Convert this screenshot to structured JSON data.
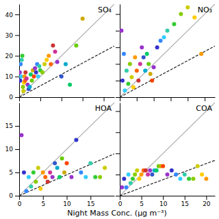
{
  "chart_data": [
    {
      "type": "scatter",
      "title": "SO₄",
      "xlim": [
        0,
        45
      ],
      "ylim": [
        0,
        45
      ],
      "xticks": [
        0,
        10,
        20,
        30,
        40
      ],
      "yticks": [
        0,
        10,
        20,
        30,
        40
      ],
      "tick_labels": "y",
      "series": [
        {
          "type": "scatter",
          "marker": "circle",
          "x": [
            0.3,
            0.5,
            0.7,
            1.0,
            1.2,
            1.5,
            1.8,
            2.0,
            2.3,
            2.5,
            2.8,
            3.0,
            3.5,
            4.0,
            4.5,
            5.0,
            5.5,
            6.0,
            6.5,
            7.0,
            7.5,
            8.0,
            8.5,
            9.0,
            9.5,
            10.0,
            11.0,
            12.0,
            13.0,
            14.0,
            15.0,
            16.0,
            17.0,
            18.0,
            20.0,
            22.0,
            24.0,
            27.0,
            30.0
          ],
          "values": [
            12.0,
            8.0,
            16.0,
            10.0,
            18.0,
            20.0,
            5.0,
            3.0,
            7.0,
            10.0,
            8.0,
            12.0,
            9.0,
            6.0,
            4.0,
            5.0,
            11.0,
            8.0,
            13.0,
            10.0,
            14.0,
            12.0,
            16.0,
            10.0,
            15.0,
            13.0,
            12.0,
            16.0,
            18.0,
            20.0,
            16.0,
            25.0,
            22.0,
            17.0,
            10.0,
            16.0,
            6.0,
            25.0,
            38.0
          ],
          "colors": [
            "#9933cc",
            "#3333cc",
            "#3388ff",
            "#33ccff",
            "#33ccaa",
            "#33cc33",
            "#88cc00",
            "#cccc00",
            "#ffcc00",
            "#ff9900",
            "#ff6600",
            "#cc3333",
            "#cc3399",
            "#9933cc",
            "#3355cc",
            "#00aacc",
            "#00cc66",
            "#66cc00",
            "#ccaa00",
            "#ff4400",
            "#9933cc",
            "#3333cc",
            "#3388ff",
            "#33ccff",
            "#33ccaa",
            "#33cc33",
            "#88cc00",
            "#cccc00",
            "#ffcc00",
            "#ff9900",
            "#ff6600",
            "#cc3333",
            "#cc3399",
            "#9933cc",
            "#3355cc",
            "#00aacc",
            "#00cc66",
            "#66cc00",
            "#ccaa00"
          ]
        },
        {
          "type": "line",
          "color": "#aaaaaa",
          "line_style": "solid",
          "x": [
            0,
            45
          ],
          "values": [
            0,
            45
          ]
        },
        {
          "type": "line",
          "color": "#222222",
          "line_style": "dashed",
          "x": [
            0,
            45
          ],
          "values": [
            0,
            24.75
          ]
        }
      ]
    },
    {
      "type": "scatter",
      "title": "NO₃",
      "xlim": [
        0,
        28
      ],
      "ylim": [
        0,
        28
      ],
      "xticks": [
        0,
        5,
        10,
        15,
        20,
        25
      ],
      "yticks": [
        0,
        5,
        10,
        15,
        20,
        25
      ],
      "tick_labels": false,
      "series": [
        {
          "type": "scatter",
          "marker": "circle",
          "x": [
            0.5,
            0.8,
            1.2,
            1.5,
            2.0,
            2.5,
            3.0,
            3.5,
            4.0,
            4.5,
            5.0,
            5.5,
            6.0,
            6.5,
            7.0,
            7.5,
            8.0,
            8.5,
            9.0,
            9.5,
            10.0,
            11.0,
            12.0,
            13.0,
            14.0,
            16.0,
            18.0,
            20.0,
            22.0,
            24.0
          ],
          "values": [
            20.0,
            5.0,
            13.0,
            2.0,
            8.0,
            4.0,
            10.0,
            6.0,
            3.0,
            12.0,
            8.0,
            5.0,
            10.0,
            15.0,
            12.0,
            8.0,
            13.0,
            10.0,
            7.0,
            5.0,
            9.0,
            15.0,
            17.0,
            18.0,
            20.0,
            22.0,
            25.0,
            27.0,
            24.0,
            13.0
          ],
          "colors": [
            "#9933cc",
            "#3333cc",
            "#3388ff",
            "#33ccff",
            "#33ccaa",
            "#33cc33",
            "#88cc00",
            "#cccc00",
            "#ffcc00",
            "#ff9900",
            "#ff6600",
            "#cc3333",
            "#cc3399",
            "#9933cc",
            "#3355cc",
            "#00aacc",
            "#00cc66",
            "#66cc00",
            "#ccaa00",
            "#ff4400",
            "#9933cc",
            "#3333cc",
            "#3388ff",
            "#33ccff",
            "#33ccaa",
            "#33cc33",
            "#88cc00",
            "#cccc00",
            "#ffcc00",
            "#ff9900"
          ]
        },
        {
          "type": "line",
          "color": "#aaaaaa",
          "line_style": "solid",
          "x": [
            0,
            28
          ],
          "values": [
            0,
            28
          ]
        },
        {
          "type": "line",
          "color": "#222222",
          "line_style": "dashed",
          "x": [
            0,
            28
          ],
          "values": [
            0,
            15.4
          ]
        }
      ]
    },
    {
      "type": "scatter",
      "title": "HOA",
      "xlabel": "Night Mass Conc. (μg m⁻³)",
      "xlim": [
        0,
        20
      ],
      "ylim": [
        0,
        20
      ],
      "xticks": [
        0,
        5,
        10,
        15
      ],
      "yticks": [
        0,
        5,
        10,
        15
      ],
      "series": [
        {
          "type": "scatter",
          "marker": "circle",
          "x": [
            0.5,
            1.0,
            1.5,
            2.0,
            2.5,
            3.0,
            3.5,
            4.0,
            4.5,
            5.0,
            5.5,
            6.0,
            6.5,
            7.0,
            7.5,
            8.0,
            8.5,
            9.0,
            9.5,
            10.0,
            11.0,
            12.0,
            13.0,
            14.0,
            15.0,
            16.0,
            17.0,
            18.0
          ],
          "values": [
            13.0,
            5.0,
            1.0,
            4.0,
            2.0,
            5.0,
            3.0,
            6.0,
            1.5,
            5.0,
            4.0,
            3.0,
            5.0,
            4.0,
            7.0,
            6.0,
            4.0,
            8.0,
            5.0,
            7.0,
            4.0,
            12.0,
            5.0,
            4.0,
            7.0,
            4.0,
            4.0,
            6.0
          ],
          "colors": [
            "#9933cc",
            "#3333cc",
            "#3388ff",
            "#33ccff",
            "#33ccaa",
            "#33cc33",
            "#88cc00",
            "#cccc00",
            "#ffcc00",
            "#ff9900",
            "#ff6600",
            "#cc3333",
            "#cc3399",
            "#9933cc",
            "#3355cc",
            "#00aacc",
            "#00cc66",
            "#66cc00",
            "#ccaa00",
            "#ff4400",
            "#9933cc",
            "#3333cc",
            "#3388ff",
            "#33ccff",
            "#33ccaa",
            "#33cc33",
            "#88cc00",
            "#cccc00"
          ]
        },
        {
          "type": "line",
          "color": "#aaaaaa",
          "line_style": "solid",
          "x": [
            0,
            20
          ],
          "values": [
            0,
            20
          ]
        },
        {
          "type": "line",
          "color": "#222222",
          "line_style": "dashed",
          "x": [
            0,
            20
          ],
          "values": [
            0,
            9
          ]
        }
      ]
    },
    {
      "type": "scatter",
      "title": "COA",
      "xlim": [
        0,
        22
      ],
      "ylim": [
        0,
        22
      ],
      "xticks": [
        0,
        5,
        10,
        15,
        20
      ],
      "yticks": [
        0,
        5,
        10,
        15,
        20
      ],
      "tick_labels": "x",
      "series": [
        {
          "type": "scatter",
          "marker": "circle",
          "x": [
            0.5,
            1.0,
            1.5,
            2.0,
            2.5,
            3.0,
            3.5,
            4.0,
            4.5,
            5.0,
            5.5,
            6.0,
            6.5,
            7.0,
            7.5,
            8.0,
            8.5,
            9.0,
            9.5,
            10.0,
            11.0,
            12.0,
            13.0,
            14.0,
            15.0,
            16.0,
            17.0,
            18.0,
            19.0,
            20.0
          ],
          "values": [
            2.0,
            4.0,
            2.0,
            5.0,
            3.0,
            4.0,
            5.0,
            6.0,
            4.0,
            5.0,
            6.0,
            6.0,
            5.0,
            6.0,
            5.0,
            6.0,
            6.0,
            7.0,
            7.0,
            7.0,
            5.0,
            6.0,
            5.0,
            4.0,
            5.0,
            4.0,
            4.0,
            7.0,
            5.0,
            4.0
          ],
          "colors": [
            "#9933cc",
            "#3333cc",
            "#3388ff",
            "#33ccff",
            "#33ccaa",
            "#33cc33",
            "#88cc00",
            "#cccc00",
            "#ffcc00",
            "#ff9900",
            "#ff6600",
            "#cc3333",
            "#cc3399",
            "#9933cc",
            "#3355cc",
            "#00aacc",
            "#00cc66",
            "#66cc00",
            "#ccaa00",
            "#ff4400",
            "#9933cc",
            "#3333cc",
            "#3388ff",
            "#33ccff",
            "#33ccaa",
            "#33cc33",
            "#88cc00",
            "#cccc00",
            "#ffcc00",
            "#ff9900"
          ]
        },
        {
          "type": "line",
          "color": "#aaaaaa",
          "line_style": "solid",
          "x": [
            0,
            22
          ],
          "values": [
            0,
            22
          ]
        },
        {
          "type": "line",
          "color": "#222222",
          "line_style": "dashed",
          "x": [
            0,
            22
          ],
          "values": [
            0,
            8.36
          ]
        }
      ]
    }
  ]
}
